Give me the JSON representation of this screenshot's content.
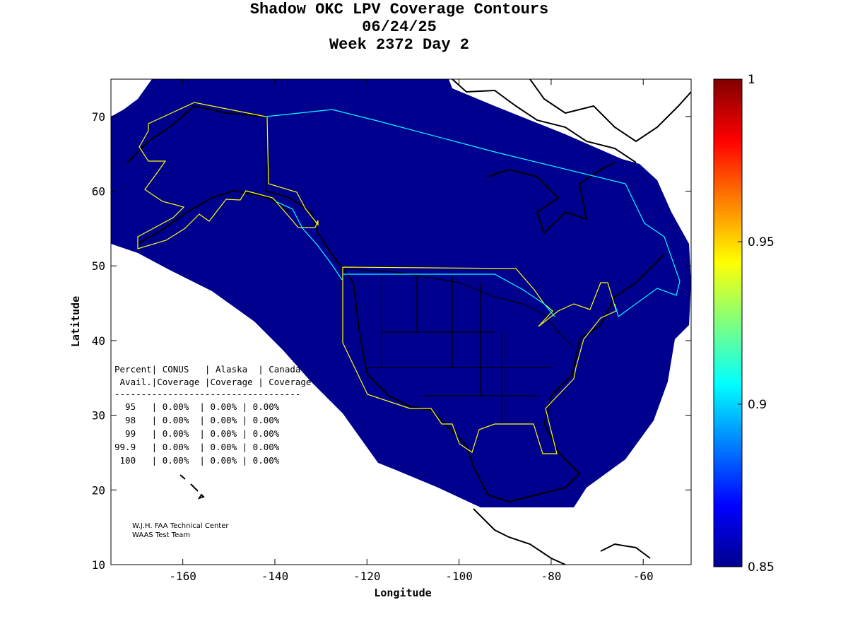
{
  "title": [
    "Shadow OKC LPV Coverage Contours",
    "06/24/25",
    "Week 2372 Day 2"
  ],
  "chart_data": {
    "type": "heatmap",
    "xlabel": "Longitude",
    "ylabel": "Latitude",
    "xlim": [
      -175.6,
      -49.6
    ],
    "ylim": [
      10,
      75
    ],
    "xticks": [
      -160,
      -140,
      -120,
      -100,
      -80,
      -60
    ],
    "yticks": [
      10,
      20,
      30,
      40,
      50,
      60,
      70
    ],
    "colorbar": {
      "range": [
        0.85,
        1
      ],
      "ticks": [
        "0.85",
        "0.9",
        "0.95",
        "1"
      ]
    },
    "coverage_value": 0.85
  },
  "table": {
    "header1": "Percent| CONUS   | Alaska  | Canada",
    "header2": " Avail.|Coverage |Coverage | Coverage",
    "rule": "-----------------------------------",
    "rows": [
      "  95   | 0.00%  | 0.00% | 0.00%",
      "  98   | 0.00%  | 0.00% | 0.00%",
      "  99   | 0.00%  | 0.00% | 0.00%",
      "99.9   | 0.00%  | 0.00% | 0.00%",
      " 100   | 0.00%  | 0.00% | 0.00%"
    ]
  },
  "credits": [
    "W.J.H. FAA Technical Center",
    "WAAS Test Team"
  ]
}
